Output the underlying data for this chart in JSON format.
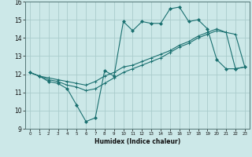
{
  "xlabel": "Humidex (Indice chaleur)",
  "bg_color": "#cce8e8",
  "grid_color": "#aacccc",
  "line_color": "#1a7070",
  "xlim": [
    -0.5,
    23.5
  ],
  "ylim": [
    9,
    16
  ],
  "xticks": [
    0,
    1,
    2,
    3,
    4,
    5,
    6,
    7,
    8,
    9,
    10,
    11,
    12,
    13,
    14,
    15,
    16,
    17,
    18,
    19,
    20,
    21,
    22,
    23
  ],
  "yticks": [
    9,
    10,
    11,
    12,
    13,
    14,
    15,
    16
  ],
  "series1_x": [
    0,
    1,
    2,
    3,
    4,
    5,
    6,
    7,
    8,
    9,
    10,
    11,
    12,
    13,
    14,
    15,
    16,
    17,
    18,
    19,
    20,
    21,
    22,
    23
  ],
  "series1_y": [
    12.1,
    11.9,
    11.6,
    11.5,
    11.2,
    10.3,
    9.4,
    9.6,
    12.2,
    11.9,
    14.9,
    14.4,
    14.9,
    14.8,
    14.8,
    15.6,
    15.7,
    14.9,
    15.0,
    14.5,
    12.8,
    12.3,
    12.3,
    12.4
  ],
  "series2_x": [
    0,
    1,
    2,
    3,
    4,
    5,
    6,
    7,
    8,
    9,
    10,
    11,
    12,
    13,
    14,
    15,
    16,
    17,
    18,
    19,
    20,
    21,
    22,
    23
  ],
  "series2_y": [
    12.1,
    11.9,
    11.7,
    11.6,
    11.4,
    11.3,
    11.1,
    11.2,
    11.5,
    11.8,
    12.1,
    12.3,
    12.5,
    12.7,
    12.9,
    13.2,
    13.5,
    13.7,
    14.0,
    14.2,
    14.4,
    14.3,
    14.2,
    12.4
  ],
  "series3_x": [
    0,
    1,
    2,
    3,
    4,
    5,
    6,
    7,
    8,
    9,
    10,
    11,
    12,
    13,
    14,
    15,
    16,
    17,
    18,
    19,
    20,
    21,
    22,
    23
  ],
  "series3_y": [
    12.1,
    11.9,
    11.8,
    11.7,
    11.6,
    11.5,
    11.4,
    11.6,
    11.9,
    12.1,
    12.4,
    12.5,
    12.7,
    12.9,
    13.1,
    13.3,
    13.6,
    13.8,
    14.1,
    14.3,
    14.5,
    14.3,
    12.3,
    12.4
  ]
}
